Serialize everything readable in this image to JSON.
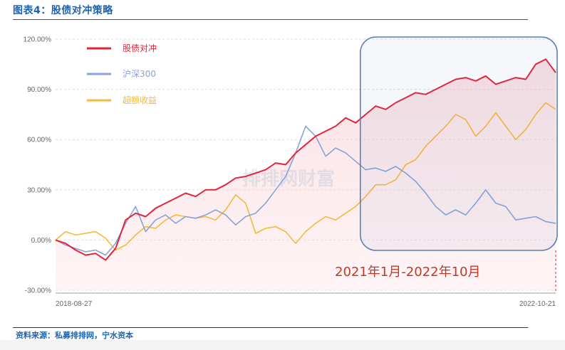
{
  "header": {
    "title": "图表4：股债对冲策略"
  },
  "footer": {
    "source": "资料来源：私募排排网，宁水资本"
  },
  "watermark": {
    "text": "排排网财富"
  },
  "annotation": {
    "text": "2021年1月-2022年10月"
  },
  "colors": {
    "bond_hedge": "#e2263a",
    "csi300": "#8aa2d6",
    "excess": "#f6b93b",
    "highlight_border": "#5b7fb5",
    "title": "#1e63b0"
  },
  "chart_data": {
    "type": "line",
    "title": "",
    "xlabel": "",
    "ylabel": "",
    "ylim": [
      -30,
      120
    ],
    "yticks": [
      120,
      90,
      60,
      30,
      0,
      -30
    ],
    "ytick_labels": [
      "120.00%",
      "90.00%",
      "60.00%",
      "30.00%",
      "0.00%",
      "-30.00%"
    ],
    "x_labels": [
      "2018-08-27",
      "2022-10-21"
    ],
    "grid": "horizontal dashed",
    "legend_position": "top-left",
    "x": [
      0.0,
      0.02,
      0.04,
      0.06,
      0.08,
      0.1,
      0.12,
      0.14,
      0.16,
      0.18,
      0.2,
      0.22,
      0.24,
      0.26,
      0.28,
      0.3,
      0.32,
      0.34,
      0.36,
      0.38,
      0.4,
      0.42,
      0.44,
      0.46,
      0.48,
      0.5,
      0.52,
      0.54,
      0.56,
      0.58,
      0.6,
      0.62,
      0.64,
      0.66,
      0.68,
      0.7,
      0.72,
      0.74,
      0.76,
      0.78,
      0.8,
      0.82,
      0.84,
      0.86,
      0.88,
      0.9,
      0.92,
      0.94,
      0.96,
      0.98,
      1.0
    ],
    "series": [
      {
        "name": "股债对冲",
        "values": [
          0,
          -2,
          -6,
          -9,
          -8,
          -12,
          -5,
          12,
          16,
          14,
          19,
          22,
          25,
          28,
          26,
          30,
          30,
          33,
          37,
          38,
          40,
          42,
          46,
          45,
          52,
          57,
          62,
          65,
          68,
          73,
          70,
          75,
          80,
          78,
          82,
          85,
          88,
          87,
          90,
          93,
          96,
          97,
          95,
          98,
          93,
          95,
          97,
          96,
          105,
          108,
          100
        ]
      },
      {
        "name": "沪深300",
        "values": [
          0,
          -3,
          -5,
          -7,
          -6,
          -9,
          -2,
          10,
          20,
          5,
          12,
          15,
          10,
          14,
          13,
          15,
          18,
          15,
          9,
          14,
          16,
          22,
          30,
          38,
          52,
          68,
          62,
          50,
          55,
          52,
          47,
          42,
          43,
          41,
          44,
          40,
          35,
          28,
          20,
          15,
          18,
          15,
          22,
          30,
          22,
          20,
          12,
          13,
          14,
          11,
          10
        ]
      },
      {
        "name": "超额收益",
        "values": [
          0,
          5,
          3,
          4,
          5,
          1,
          -6,
          -3,
          3,
          8,
          7,
          12,
          15,
          14,
          13,
          14,
          12,
          18,
          27,
          22,
          4,
          7,
          8,
          5,
          -2,
          5,
          10,
          14,
          12,
          16,
          20,
          26,
          33,
          33,
          36,
          45,
          48,
          56,
          62,
          68,
          75,
          72,
          62,
          68,
          76,
          68,
          60,
          66,
          75,
          82,
          78
        ]
      }
    ],
    "highlight_range": {
      "x": [
        0.615,
        1.0
      ],
      "label": "2021年1月-2022年10月"
    }
  }
}
